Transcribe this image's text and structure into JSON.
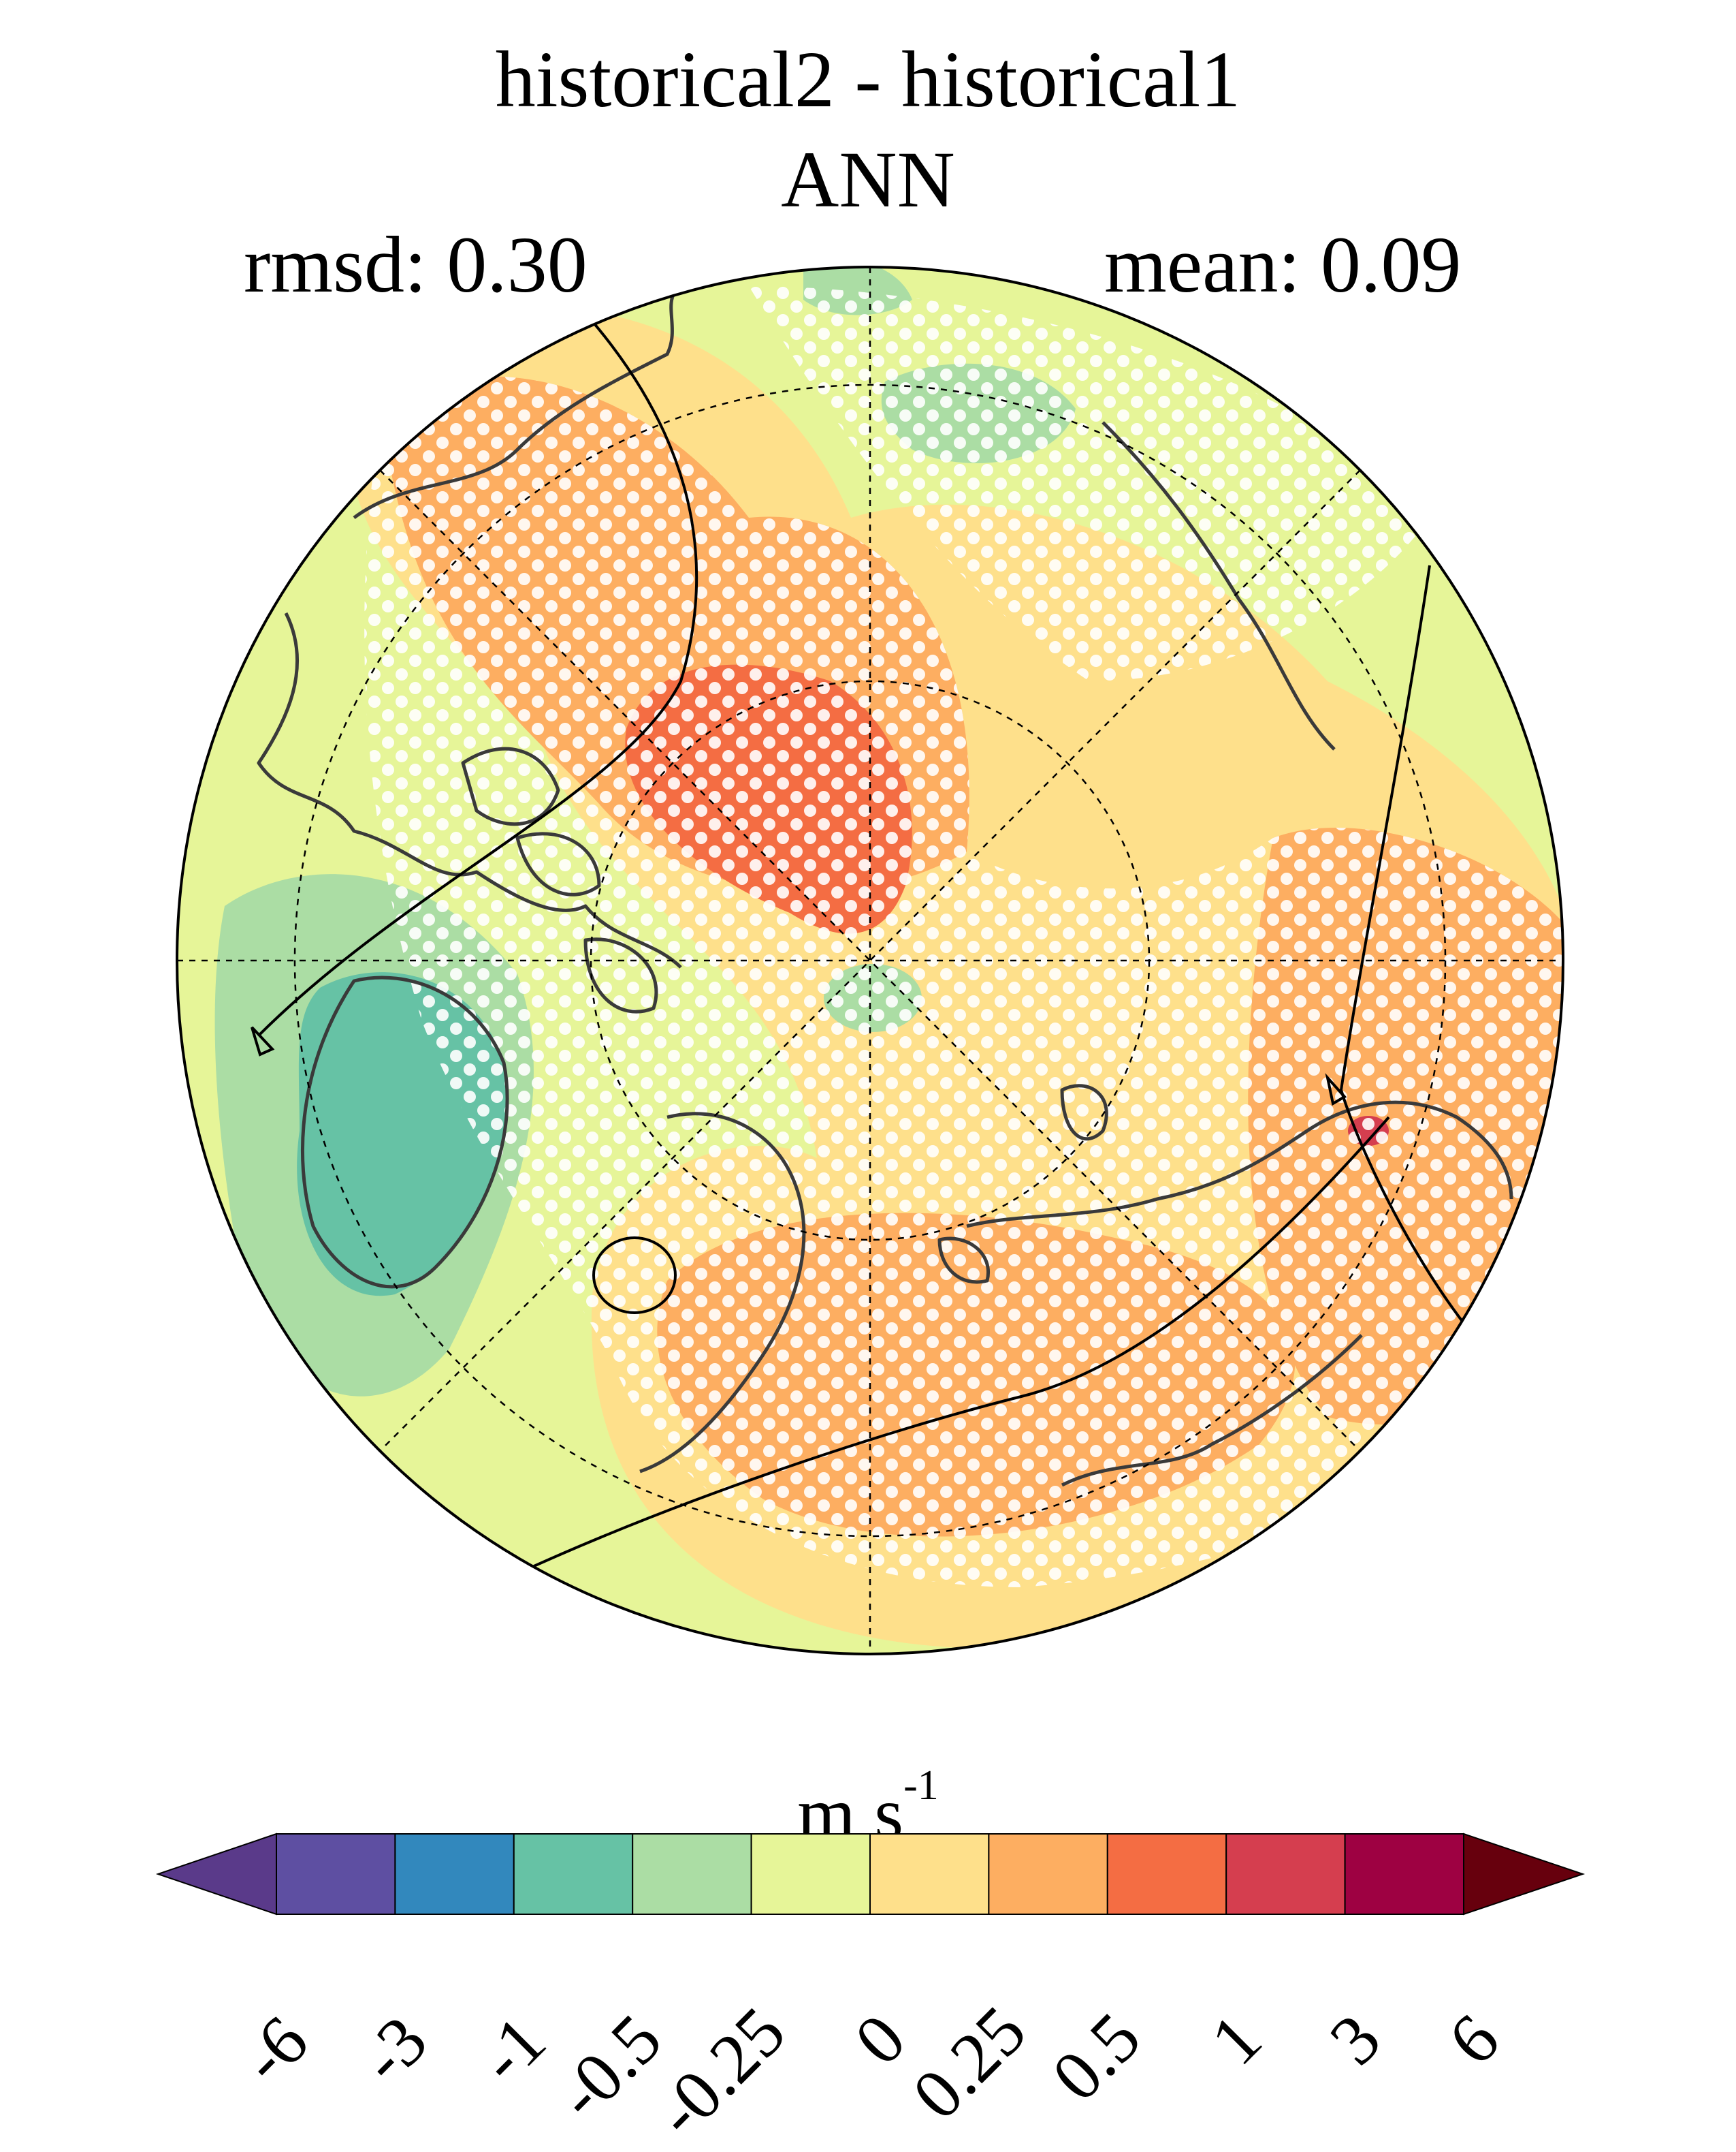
{
  "map": {
    "title": "historical2 - historical1",
    "season": "ANN",
    "rmsd_label": "rmsd: 0.30",
    "mean_label": "mean: 0.09",
    "projection": "north polar stereographic",
    "stippling": "white dots mark significant grid points",
    "field_regions": [
      {
        "region": "central Arctic / East Siberian side",
        "range": "0.5 to 1",
        "color": "#f46d43"
      },
      {
        "region": "Eurasian mid-latitudes band",
        "range": "0.25 to 0.5",
        "color": "#fdae61"
      },
      {
        "region": "Greenland",
        "range": "-1 to -0.5",
        "color": "#66c2a5"
      },
      {
        "region": "Pole small patch",
        "range": "-0.5 to -0.25",
        "color": "#abdda4"
      },
      {
        "region": "Eastern Siberia (Lena)",
        "range": "1 to 3",
        "color": "#d53e4f"
      }
    ]
  },
  "colorbar": {
    "units": "m s",
    "units_exponent": "-1",
    "extend": "both",
    "tick_labels": [
      "-6",
      "-3",
      "-1",
      "-0.5",
      "-0.25",
      "0",
      "0.25",
      "0.5",
      "1",
      "3",
      "6"
    ],
    "colors": [
      "#5e4fa2",
      "#3288bd",
      "#66c2a5",
      "#abdda4",
      "#e6f598",
      "#fee08b",
      "#fdae61",
      "#f46d43",
      "#d53e4f",
      "#9e0142"
    ],
    "under_color": "#5a3a8a",
    "over_color": "#67000d"
  }
}
